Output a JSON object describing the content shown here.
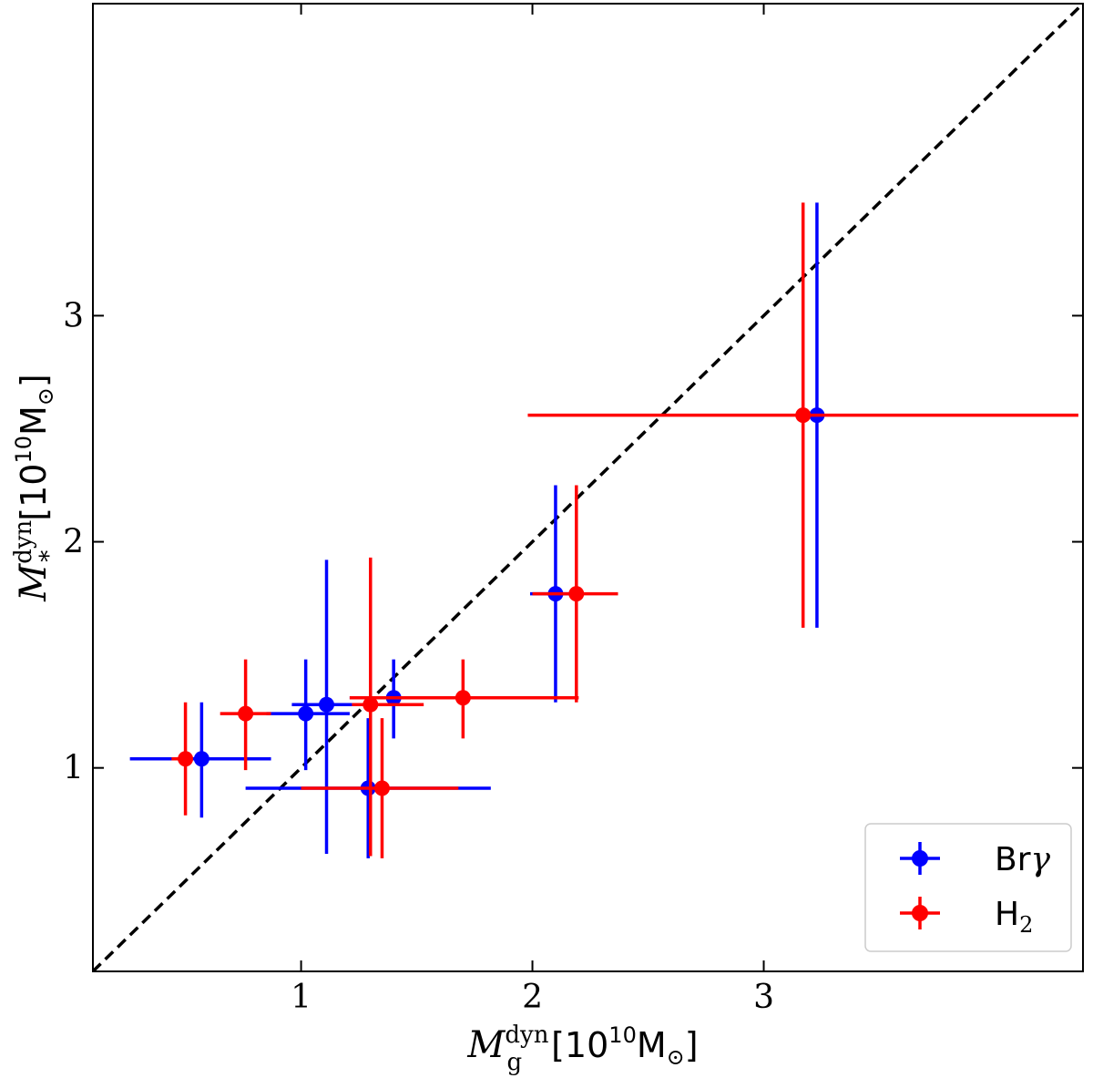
{
  "chart_data": {
    "type": "scatter",
    "title": "",
    "xlabel": {
      "symbol": "M",
      "sub": "g",
      "sup": "dyn",
      "units_prefix": "[10",
      "units_exp": "10",
      "units_suffix": "M",
      "units_sun": "⊙",
      "units_close": "]"
    },
    "ylabel": {
      "symbol": "M",
      "sub": "*",
      "sup": "dyn",
      "units_prefix": "[10",
      "units_exp": "10",
      "units_suffix": "M",
      "units_sun": "⊙",
      "units_close": "]"
    },
    "xlim": [
      0.1,
      4.38
    ],
    "ylim": [
      0.1,
      4.38
    ],
    "xticks": [
      1,
      2,
      3
    ],
    "yticks": [
      1,
      2,
      3
    ],
    "xtick_labels": [
      "1",
      "2",
      "3"
    ],
    "ytick_labels": [
      "1",
      "2",
      "3"
    ],
    "one_to_one_line": true,
    "legend": {
      "placement": "lower-right"
    },
    "series": [
      {
        "name": "Brγ",
        "legend_main": "Br",
        "legend_greek": "γ",
        "color": "#0000ff",
        "points": [
          {
            "x": 0.57,
            "y": 1.04,
            "xerr": [
              0.31,
              0.3
            ],
            "yerr": [
              0.26,
              0.25
            ]
          },
          {
            "x": 1.02,
            "y": 1.24,
            "xerr": [
              0.17,
              0.19
            ],
            "yerr": [
              0.25,
              0.24
            ]
          },
          {
            "x": 1.11,
            "y": 1.28,
            "xerr": [
              0.15,
              0.11
            ],
            "yerr": [
              0.66,
              0.64
            ]
          },
          {
            "x": 1.4,
            "y": 1.31,
            "xerr": [
              0.19,
              0.12
            ],
            "yerr": [
              0.18,
              0.17
            ]
          },
          {
            "x": 1.29,
            "y": 0.91,
            "xerr": [
              0.53,
              0.53
            ],
            "yerr": [
              0.31,
              0.31
            ]
          },
          {
            "x": 2.1,
            "y": 1.77,
            "xerr": [
              0.11,
              0.1
            ],
            "yerr": [
              0.48,
              0.48
            ]
          },
          {
            "x": 3.23,
            "y": 2.56,
            "xerr": [
              0.0,
              0.0
            ],
            "yerr": [
              0.94,
              0.94
            ]
          }
        ]
      },
      {
        "name": "H2",
        "legend_main": "H",
        "legend_sub": "2",
        "color": "#ff0000",
        "points": [
          {
            "x": 0.5,
            "y": 1.04,
            "xerr": [
              0.06,
              0.0
            ],
            "yerr": [
              0.25,
              0.25
            ]
          },
          {
            "x": 0.76,
            "y": 1.24,
            "xerr": [
              0.11,
              0.11
            ],
            "yerr": [
              0.25,
              0.24
            ]
          },
          {
            "x": 1.3,
            "y": 1.28,
            "xerr": [
              0.08,
              0.23
            ],
            "yerr": [
              0.67,
              0.65
            ]
          },
          {
            "x": 1.35,
            "y": 0.91,
            "xerr": [
              0.35,
              0.33
            ],
            "yerr": [
              0.31,
              0.31
            ]
          },
          {
            "x": 1.7,
            "y": 1.31,
            "xerr": [
              0.49,
              0.5
            ],
            "yerr": [
              0.18,
              0.17
            ]
          },
          {
            "x": 2.19,
            "y": 1.77,
            "xerr": [
              0.19,
              0.18
            ],
            "yerr": [
              0.48,
              0.48
            ]
          },
          {
            "x": 3.17,
            "y": 2.56,
            "xerr": [
              1.19,
              1.19
            ],
            "yerr": [
              0.94,
              0.94
            ]
          }
        ]
      }
    ]
  }
}
